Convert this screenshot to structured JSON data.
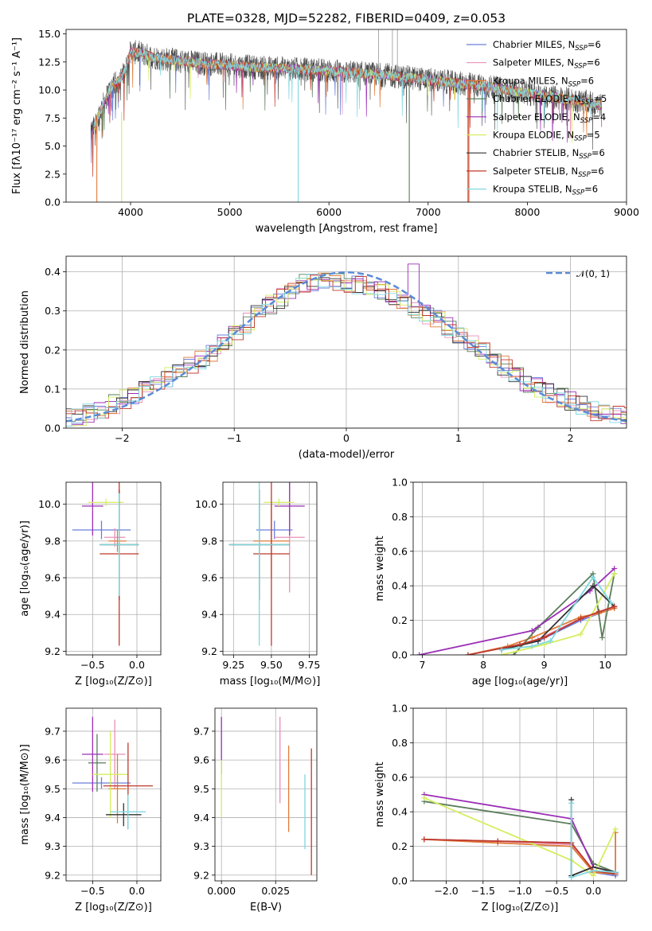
{
  "chart_data": [
    {
      "id": "spectrum",
      "type": "line",
      "title": "PLATE=0328, MJD=52282, FIBERID=0409, z=0.053",
      "xlabel": "wavelength [Angstrom, rest frame]",
      "ylabel": "Flux [fλ10⁻¹⁷ erg cm⁻² s⁻¹ A⁻¹]",
      "xlim": [
        3350,
        9000
      ],
      "ylim": [
        0,
        15.4
      ],
      "xticks": [
        4000,
        5000,
        6000,
        7000,
        8000,
        9000
      ],
      "yticks": [
        0.0,
        2.5,
        5.0,
        7.5,
        10.0,
        12.5,
        15.0
      ],
      "grid": false,
      "legend": "top-right",
      "data_envelope": {
        "x": [
          3600,
          3700,
          3800,
          3900,
          3950,
          4000,
          4100,
          4200,
          4300,
          4500,
          4700,
          5000,
          5300,
          5600,
          6000,
          6300,
          6600,
          7000,
          7300,
          7600,
          7800,
          8000,
          8300,
          8600,
          8750
        ],
        "y": [
          6.0,
          8.2,
          10.2,
          11.0,
          11.8,
          13.4,
          13.3,
          13.0,
          12.8,
          12.6,
          12.4,
          12.2,
          12.0,
          11.9,
          11.7,
          11.5,
          11.3,
          10.9,
          10.6,
          10.3,
          10.0,
          9.7,
          9.3,
          8.9,
          8.6
        ]
      },
      "series": [
        {
          "name": "Chabrier MILES, N_SSP=6",
          "color": "#6a7fdb"
        },
        {
          "name": "Salpeter MILES, N_SSP=6",
          "color": "#e88fb8"
        },
        {
          "name": "Kroupa MILES, N_SSP=6",
          "color": "#e07b39"
        },
        {
          "name": "Chabrier ELODIE, N_SSP=5",
          "color": "#5a7d5a"
        },
        {
          "name": "Salpeter ELODIE, N_SSP=4",
          "color": "#9b2fb6"
        },
        {
          "name": "Kroupa ELODIE, N_SSP=5",
          "color": "#d4ee5e"
        },
        {
          "name": "Chabrier STELIB, N_SSP=6",
          "color": "#333333"
        },
        {
          "name": "Salpeter STELIB, N_SSP=6",
          "color": "#c0392b"
        },
        {
          "name": "Kroupa STELIB, N_SSP=6",
          "color": "#7fd8e0"
        }
      ],
      "legend_labels": [
        {
          "base": "Chabrier MILES, N",
          "sub": "SSP",
          "tail": "=6"
        },
        {
          "base": "Salpeter MILES, N",
          "sub": "SSP",
          "tail": "=6"
        },
        {
          "base": "Kroupa MILES, N",
          "sub": "SSP",
          "tail": "=6"
        },
        {
          "base": "Chabrier ELODIE, N",
          "sub": "SSP",
          "tail": "=5"
        },
        {
          "base": "Salpeter ELODIE, N",
          "sub": "SSP",
          "tail": "=4"
        },
        {
          "base": "Kroupa ELODIE, N",
          "sub": "SSP",
          "tail": "=5"
        },
        {
          "base": "Chabrier STELIB, N",
          "sub": "SSP",
          "tail": "=6"
        },
        {
          "base": "Salpeter STELIB, N",
          "sub": "SSP",
          "tail": "=6"
        },
        {
          "base": "Kroupa STELIB, N",
          "sub": "SSP",
          "tail": "=6"
        }
      ]
    },
    {
      "id": "residuals",
      "type": "step",
      "xlabel": "(data-model)/error",
      "ylabel": "Normed distribution",
      "xlim": [
        -2.5,
        2.5
      ],
      "ylim": [
        0,
        0.44
      ],
      "xticks": [
        -2,
        -1,
        0,
        1,
        2
      ],
      "yticks": [
        0.0,
        0.1,
        0.2,
        0.3,
        0.4
      ],
      "grid": true,
      "legend": "top-right",
      "reference_curve": {
        "name": "𝒩(0, 1)",
        "mean": 0,
        "sigma": 1,
        "color": "#5b8bd6"
      },
      "bin_width": 0.1,
      "hist_envelope": {
        "x": [
          -2.45,
          -2.2,
          -2.0,
          -1.8,
          -1.6,
          -1.4,
          -1.2,
          -1.0,
          -0.8,
          -0.6,
          -0.4,
          -0.2,
          0.0,
          0.2,
          0.4,
          0.6,
          0.8,
          1.0,
          1.2,
          1.4,
          1.6,
          1.8,
          2.0,
          2.2,
          2.45
        ],
        "y": [
          0.025,
          0.045,
          0.07,
          0.1,
          0.13,
          0.16,
          0.19,
          0.24,
          0.29,
          0.33,
          0.37,
          0.38,
          0.37,
          0.36,
          0.34,
          0.31,
          0.28,
          0.24,
          0.2,
          0.16,
          0.12,
          0.09,
          0.07,
          0.045,
          0.03
        ]
      }
    },
    {
      "id": "age_vs_Z",
      "type": "errorbar",
      "xlabel": "Z [log₁₀(Z/Z⊙)]",
      "ylabel": "age  [log₁₀(age/yr)]",
      "xlim": [
        -0.8,
        0.27
      ],
      "ylim": [
        9.18,
        10.12
      ],
      "xticks": [
        -0.5,
        0.0
      ],
      "yticks": [
        9.2,
        9.4,
        9.6,
        9.8,
        10.0
      ],
      "grid": true,
      "points": [
        {
          "series": 0,
          "x": -0.4,
          "y": 9.86,
          "xerr": 0.33,
          "yerr": 0.05
        },
        {
          "series": 1,
          "x": -0.25,
          "y": 9.82,
          "xerr": 0.12,
          "yerr": 0.05
        },
        {
          "series": 2,
          "x": -0.22,
          "y": 9.8,
          "xerr": 0.1,
          "yerr": 0.06
        },
        {
          "series": 3,
          "x": -0.2,
          "y": 9.78,
          "xerr": 0.22,
          "yerr": 0.3
        },
        {
          "series": 4,
          "x": -0.5,
          "y": 9.99,
          "xerr": 0.12,
          "yerr": 0.16
        },
        {
          "series": 5,
          "x": -0.35,
          "y": 10.01,
          "xerr": 0.2,
          "yerr": 0.02
        },
        {
          "series": 6,
          "x": -0.2,
          "y": 9.78,
          "xerr": 0.22,
          "yerr": 0.3
        },
        {
          "series": 7,
          "x": -0.2,
          "y": 9.73,
          "xerr": 0.22,
          "yerr": 0.5
        },
        {
          "series": 8,
          "x": -0.2,
          "y": 9.78,
          "xerr": 0.22,
          "yerr": 0.28
        }
      ]
    },
    {
      "id": "age_vs_mass",
      "type": "errorbar",
      "xlabel": "mass [log₁₀(M/M⊙)]",
      "ylabel": "",
      "xlim": [
        9.18,
        9.8
      ],
      "ylim": [
        9.18,
        10.12
      ],
      "xticks": [
        9.25,
        9.5,
        9.75
      ],
      "yticks": [
        9.2,
        9.4,
        9.6,
        9.8,
        10.0
      ],
      "grid": true,
      "points": [
        {
          "series": 0,
          "x": 9.52,
          "y": 9.86,
          "xerr": 0.12,
          "yerr": 0.05
        },
        {
          "series": 1,
          "x": 9.62,
          "y": 9.82,
          "xerr": 0.1,
          "yerr": 0.3
        },
        {
          "series": 2,
          "x": 9.5,
          "y": 9.8,
          "xerr": 0.12,
          "yerr": 0.2
        },
        {
          "series": 3,
          "x": 9.42,
          "y": 9.78,
          "xerr": 0.2,
          "yerr": 0.3
        },
        {
          "series": 4,
          "x": 9.62,
          "y": 9.99,
          "xerr": 0.1,
          "yerr": 0.16
        },
        {
          "series": 5,
          "x": 9.55,
          "y": 10.01,
          "xerr": 0.1,
          "yerr": 0.02
        },
        {
          "series": 6,
          "x": 9.42,
          "y": 9.78,
          "xerr": 0.2,
          "yerr": 0.3
        },
        {
          "series": 7,
          "x": 9.5,
          "y": 9.73,
          "xerr": 0.12,
          "yerr": 0.5
        },
        {
          "series": 8,
          "x": 9.42,
          "y": 9.78,
          "xerr": 0.2,
          "yerr": 0.55
        }
      ]
    },
    {
      "id": "massweight_vs_age",
      "type": "line",
      "xlabel": "age  [log₁₀(age/yr)]",
      "ylabel": "mass weight",
      "xlim": [
        6.85,
        10.35
      ],
      "ylim": [
        0,
        1.0
      ],
      "xticks": [
        7,
        8,
        9,
        10
      ],
      "yticks": [
        0.0,
        0.2,
        0.4,
        0.6,
        0.8,
        1.0
      ],
      "grid": true,
      "series": [
        {
          "series": 0,
          "x": [
            8.3,
            8.6,
            8.9,
            9.6,
            9.9,
            10.15
          ],
          "y": [
            0.03,
            0.06,
            0.08,
            0.2,
            0.24,
            0.28
          ]
        },
        {
          "series": 1,
          "x": [
            8.3,
            8.6,
            8.9,
            9.6,
            9.9,
            10.15
          ],
          "y": [
            0.03,
            0.06,
            0.09,
            0.21,
            0.24,
            0.27
          ]
        },
        {
          "series": 2,
          "x": [
            7.75,
            8.4,
            8.8,
            9.6,
            9.9,
            10.15
          ],
          "y": [
            0.0,
            0.05,
            0.1,
            0.22,
            0.24,
            0.27
          ]
        },
        {
          "series": 3,
          "x": [
            8.5,
            8.9,
            9.8,
            9.95,
            10.15
          ],
          "y": [
            0.0,
            0.16,
            0.47,
            0.1,
            0.47
          ]
        },
        {
          "series": 4,
          "x": [
            6.95,
            8.8,
            9.75,
            10.15
          ],
          "y": [
            0.0,
            0.14,
            0.37,
            0.5
          ]
        },
        {
          "series": 5,
          "x": [
            8.3,
            9.0,
            9.6,
            10.15
          ],
          "y": [
            0.0,
            0.06,
            0.12,
            0.47
          ]
        },
        {
          "series": 6,
          "x": [
            8.3,
            8.9,
            9.8,
            10.15
          ],
          "y": [
            0.03,
            0.08,
            0.4,
            0.28
          ]
        },
        {
          "series": 7,
          "x": [
            7.75,
            8.6,
            9.0,
            9.6,
            9.9,
            10.15
          ],
          "y": [
            0.0,
            0.06,
            0.1,
            0.21,
            0.25,
            0.28
          ]
        },
        {
          "series": 8,
          "x": [
            8.3,
            8.8,
            9.1,
            9.8,
            10.1
          ],
          "y": [
            0.03,
            0.05,
            0.08,
            0.45,
            0.3
          ]
        }
      ]
    },
    {
      "id": "mass_vs_Z",
      "type": "errorbar",
      "xlabel": "Z [log₁₀(Z/Z⊙)]",
      "ylabel": "mass [log₁₀(M/M⊙)]",
      "xlim": [
        -0.8,
        0.27
      ],
      "ylim": [
        9.18,
        9.78
      ],
      "xticks": [
        -0.5,
        0.0
      ],
      "yticks": [
        9.2,
        9.3,
        9.4,
        9.5,
        9.6,
        9.7
      ],
      "grid": true,
      "points": [
        {
          "series": 0,
          "x": -0.4,
          "y": 9.52,
          "xerr": 0.33,
          "yerr": 0.02
        },
        {
          "series": 1,
          "x": -0.25,
          "y": 9.62,
          "xerr": 0.12,
          "yerr": 0.12
        },
        {
          "series": 2,
          "x": -0.22,
          "y": 9.5,
          "xerr": 0.1,
          "yerr": 0.12
        },
        {
          "series": 3,
          "x": -0.45,
          "y": 9.59,
          "xerr": 0.1,
          "yerr": 0.1
        },
        {
          "series": 4,
          "x": -0.5,
          "y": 9.62,
          "xerr": 0.12,
          "yerr": 0.13
        },
        {
          "series": 5,
          "x": -0.3,
          "y": 9.55,
          "xerr": 0.2,
          "yerr": 0.15
        },
        {
          "series": 6,
          "x": -0.15,
          "y": 9.41,
          "xerr": 0.2,
          "yerr": 0.04
        },
        {
          "series": 7,
          "x": -0.1,
          "y": 9.51,
          "xerr": 0.28,
          "yerr": 0.15
        },
        {
          "series": 8,
          "x": -0.1,
          "y": 9.42,
          "xerr": 0.2,
          "yerr": 0.06
        }
      ]
    },
    {
      "id": "mass_vs_ebv",
      "type": "errorbar",
      "xlabel": "E(B-V)",
      "ylabel": "",
      "xlim": [
        -0.003,
        0.044
      ],
      "ylim": [
        9.18,
        9.78
      ],
      "xticks": [
        0.0,
        0.025
      ],
      "tick_labels": [
        "0.000",
        "0.025"
      ],
      "yticks": [
        9.2,
        9.3,
        9.4,
        9.5,
        9.6,
        9.7
      ],
      "grid": true,
      "points": [
        {
          "series": 4,
          "x": 0.0,
          "y": 9.65,
          "xerr": 0,
          "yerr": 0.1
        },
        {
          "series": 5,
          "x": 0.0,
          "y": 9.5,
          "xerr": 0,
          "yerr": 0.1
        },
        {
          "series": 1,
          "x": 0.027,
          "y": 9.6,
          "xerr": 0,
          "yerr": 0.15
        },
        {
          "series": 2,
          "x": 0.031,
          "y": 9.5,
          "xerr": 0,
          "yerr": 0.15
        },
        {
          "series": 8,
          "x": 0.0385,
          "y": 9.42,
          "xerr": 0,
          "yerr": 0.13
        },
        {
          "series": 7,
          "x": 0.0415,
          "y": 9.42,
          "xerr": 0,
          "yerr": 0.22
        }
      ]
    },
    {
      "id": "massweight_vs_Z",
      "type": "line",
      "xlabel": "Z [log₁₀(Z/Z⊙)]",
      "ylabel": "mass weight",
      "xlim": [
        -2.45,
        0.45
      ],
      "ylim": [
        0,
        1.0
      ],
      "xticks": [
        -2.0,
        -1.5,
        -1.0,
        -0.5,
        0.0
      ],
      "tick_labels": [
        "−2.0",
        "−1.5",
        "−1.0",
        "−0.5",
        "0.0"
      ],
      "yticks": [
        0.0,
        0.2,
        0.4,
        0.6,
        0.8,
        1.0
      ],
      "grid": true,
      "series": [
        {
          "series": 0,
          "x": [
            -2.3,
            -1.3,
            -0.3,
            0.0,
            0.3
          ],
          "y": [
            0.24,
            0.23,
            0.22,
            0.05,
            0.03
          ]
        },
        {
          "series": 1,
          "x": [
            -2.3,
            -1.3,
            -0.3,
            0.0,
            0.3
          ],
          "y": [
            0.24,
            0.23,
            0.21,
            0.05,
            0.04
          ]
        },
        {
          "series": 2,
          "x": [
            -2.3,
            -1.3,
            -0.3,
            0.0,
            0.3,
            0.3
          ],
          "y": [
            0.24,
            0.22,
            0.2,
            0.05,
            0.04,
            0.28
          ]
        },
        {
          "series": 3,
          "x": [
            -2.3,
            -0.3,
            0.0,
            0.3
          ],
          "y": [
            0.46,
            0.33,
            0.1,
            0.05
          ]
        },
        {
          "series": 4,
          "x": [
            -2.3,
            -0.3,
            0.0,
            0.3
          ],
          "y": [
            0.5,
            0.36,
            0.08,
            0.05
          ]
        },
        {
          "series": 5,
          "x": [
            -2.3,
            -0.3,
            0.0,
            0.3
          ],
          "y": [
            0.48,
            0.12,
            0.03,
            0.3
          ]
        },
        {
          "series": 6,
          "x": [
            -0.3,
            -0.3,
            0.0,
            0.3
          ],
          "y": [
            0.47,
            0.03,
            0.08,
            0.05
          ]
        },
        {
          "series": 7,
          "x": [
            -2.3,
            -1.3,
            -0.3,
            0.0,
            0.3
          ],
          "y": [
            0.24,
            0.23,
            0.22,
            0.06,
            0.04
          ]
        },
        {
          "series": 8,
          "x": [
            -0.3,
            -0.3,
            0.0,
            0.3
          ],
          "y": [
            0.45,
            0.02,
            0.06,
            0.05
          ]
        }
      ]
    }
  ]
}
